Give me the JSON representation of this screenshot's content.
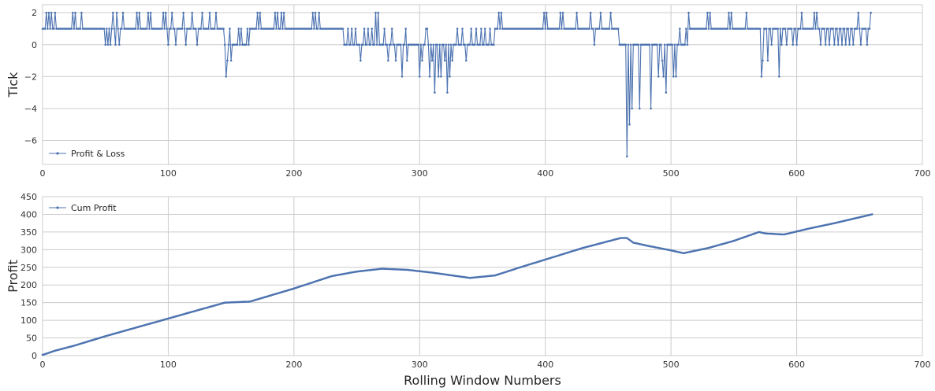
{
  "colors": {
    "series": "#4c72b0",
    "grid": "#cccccc",
    "frame": "#cccccc",
    "background": "#ffffff"
  },
  "chart_data": [
    {
      "type": "line",
      "ylabel": "Tick",
      "xlabel": "",
      "xlim": [
        0,
        700
      ],
      "ylim": [
        -7.5,
        2.5
      ],
      "xticks": [
        0,
        100,
        200,
        300,
        400,
        500,
        600,
        700
      ],
      "yticks": [
        -6,
        -4,
        -2,
        0,
        2
      ],
      "grid": true,
      "legend_position": "lower-left",
      "marker": "dot",
      "series": [
        {
          "name": "Profit & Loss",
          "segments": [
            {
              "x": [
                0,
                145
              ],
              "level": 1,
              "spikes": [
                [
                  3,
                  2
                ],
                [
                  5,
                  2
                ],
                [
                  7,
                  2
                ],
                [
                  10,
                  2
                ],
                [
                  24,
                  2
                ],
                [
                  26,
                  2
                ],
                [
                  31,
                  2
                ],
                [
                  50,
                  0
                ],
                [
                  52,
                  0
                ],
                [
                  54,
                  0
                ],
                [
                  56,
                  2
                ],
                [
                  58,
                  0
                ],
                [
                  59,
                  2
                ],
                [
                  61,
                  0
                ],
                [
                  64,
                  2
                ],
                [
                  75,
                  2
                ],
                [
                  77,
                  2
                ],
                [
                  84,
                  2
                ],
                [
                  86,
                  2
                ],
                [
                  96,
                  2
                ],
                [
                  98,
                  2
                ],
                [
                  100,
                  0
                ],
                [
                  103,
                  2
                ],
                [
                  106,
                  0
                ],
                [
                  112,
                  2
                ],
                [
                  114,
                  0
                ],
                [
                  119,
                  2
                ],
                [
                  123,
                  0
                ],
                [
                  127,
                  2
                ],
                [
                  133,
                  2
                ],
                [
                  138,
                  2
                ]
              ]
            },
            {
              "x": [
                145,
                165
              ],
              "level": 0,
              "spikes": [
                [
                  146,
                  -2
                ],
                [
                  147,
                  -1
                ],
                [
                  149,
                  1
                ],
                [
                  150,
                  -1
                ],
                [
                  156,
                  1
                ],
                [
                  158,
                  1
                ],
                [
                  163,
                  1
                ]
              ]
            },
            {
              "x": [
                165,
                240
              ],
              "level": 1,
              "spikes": [
                [
                  171,
                  2
                ],
                [
                  173,
                  2
                ],
                [
                  185,
                  2
                ],
                [
                  187,
                  2
                ],
                [
                  190,
                  2
                ],
                [
                  192,
                  2
                ],
                [
                  215,
                  2
                ],
                [
                  217,
                  2
                ],
                [
                  220,
                  2
                ],
                [
                  226,
                  1
                ],
                [
                  240,
                  2
                ]
              ]
            },
            {
              "x": [
                240,
                270
              ],
              "level": 0,
              "spikes": [
                [
                  243,
                  1
                ],
                [
                  246,
                  1
                ],
                [
                  249,
                  1
                ],
                [
                  253,
                  -1
                ],
                [
                  256,
                  1
                ],
                [
                  259,
                  1
                ],
                [
                  262,
                  1
                ],
                [
                  265,
                  2
                ],
                [
                  267,
                  2
                ]
              ]
            },
            {
              "x": [
                270,
                360
              ],
              "level": 0,
              "spikes": [
                [
                  272,
                  1
                ],
                [
                  275,
                  -1
                ],
                [
                  278,
                  1
                ],
                [
                  281,
                  -1
                ],
                [
                  286,
                  -2
                ],
                [
                  289,
                  1
                ],
                [
                  290,
                  -1
                ],
                [
                  296,
                  0
                ],
                [
                  300,
                  -2
                ],
                [
                  302,
                  -1
                ],
                [
                  305,
                  1
                ],
                [
                  306,
                  1
                ],
                [
                  308,
                  -2
                ],
                [
                  310,
                  -1
                ],
                [
                  312,
                  -3
                ],
                [
                  315,
                  -2
                ],
                [
                  317,
                  -2
                ],
                [
                  320,
                  -1
                ],
                [
                  322,
                  -3
                ],
                [
                  324,
                  -2
                ],
                [
                  326,
                  -1
                ],
                [
                  330,
                  1
                ],
                [
                  334,
                  1
                ],
                [
                  337,
                  -1
                ],
                [
                  341,
                  1
                ],
                [
                  345,
                  1
                ],
                [
                  349,
                  1
                ],
                [
                  352,
                  1
                ],
                [
                  356,
                  1
                ]
              ]
            },
            {
              "x": [
                360,
                460
              ],
              "level": 1,
              "spikes": [
                [
                  363,
                  2
                ],
                [
                  365,
                  2
                ],
                [
                  399,
                  2
                ],
                [
                  401,
                  2
                ],
                [
                  412,
                  2
                ],
                [
                  414,
                  2
                ],
                [
                  425,
                  2
                ],
                [
                  436,
                  2
                ],
                [
                  439,
                  0
                ],
                [
                  444,
                  2
                ],
                [
                  452,
                  2
                ],
                [
                  459,
                  0
                ]
              ]
            },
            {
              "x": [
                460,
                515
              ],
              "level": 0,
              "spikes": [
                [
                  465,
                  -7
                ],
                [
                  467,
                  -5
                ],
                [
                  469,
                  -4
                ],
                [
                  475,
                  -4
                ],
                [
                  484,
                  -4
                ],
                [
                  490,
                  -2
                ],
                [
                  493,
                  -1
                ],
                [
                  494,
                  -2
                ],
                [
                  496,
                  -3
                ],
                [
                  502,
                  -2
                ],
                [
                  504,
                  -2
                ],
                [
                  507,
                  1
                ],
                [
                  512,
                  1
                ],
                [
                  514,
                  2
                ]
              ]
            },
            {
              "x": [
                515,
                570
              ],
              "level": 1,
              "spikes": [
                [
                  529,
                  2
                ],
                [
                  531,
                  2
                ],
                [
                  546,
                  2
                ],
                [
                  548,
                  2
                ],
                [
                  560,
                  2
                ],
                [
                  569,
                  1
                ]
              ]
            },
            {
              "x": [
                570,
                660
              ],
              "level": 1,
              "spikes": [
                [
                  572,
                  -2
                ],
                [
                  573,
                  -1
                ],
                [
                  577,
                  -1
                ],
                [
                  580,
                  0
                ],
                [
                  586,
                  -2
                ],
                [
                  588,
                  0
                ],
                [
                  592,
                  0
                ],
                [
                  597,
                  0
                ],
                [
                  600,
                  0
                ],
                [
                  604,
                  2
                ],
                [
                  609,
                  1
                ],
                [
                  614,
                  2
                ],
                [
                  616,
                  2
                ],
                [
                  619,
                  0
                ],
                [
                  623,
                  0
                ],
                [
                  626,
                  0
                ],
                [
                  630,
                  0
                ],
                [
                  633,
                  0
                ],
                [
                  636,
                  0
                ],
                [
                  639,
                  0
                ],
                [
                  642,
                  0
                ],
                [
                  645,
                  0
                ],
                [
                  649,
                  2
                ],
                [
                  651,
                  0
                ],
                [
                  654,
                  1
                ],
                [
                  656,
                  0
                ],
                [
                  659,
                  2
                ]
              ]
            }
          ]
        }
      ]
    },
    {
      "type": "line",
      "ylabel": "Profit",
      "xlabel": "Rolling Window Numbers",
      "xlim": [
        0,
        700
      ],
      "ylim": [
        0,
        450
      ],
      "xticks": [
        0,
        100,
        200,
        300,
        400,
        500,
        600,
        700
      ],
      "yticks": [
        0,
        50,
        100,
        150,
        200,
        250,
        300,
        350,
        400,
        450
      ],
      "grid": true,
      "legend_position": "upper-left",
      "marker": "dot",
      "series": [
        {
          "name": "Cum Profit",
          "x": [
            0,
            10,
            25,
            50,
            75,
            100,
            125,
            145,
            165,
            200,
            230,
            250,
            270,
            290,
            310,
            340,
            360,
            380,
            400,
            430,
            460,
            465,
            470,
            480,
            500,
            510,
            530,
            550,
            570,
            575,
            590,
            610,
            630,
            660
          ],
          "y": [
            2,
            14,
            28,
            55,
            80,
            105,
            130,
            150,
            153,
            190,
            225,
            238,
            246,
            243,
            235,
            220,
            227,
            250,
            272,
            305,
            333,
            333,
            320,
            312,
            298,
            290,
            305,
            325,
            350,
            346,
            343,
            360,
            375,
            400
          ]
        }
      ]
    }
  ]
}
